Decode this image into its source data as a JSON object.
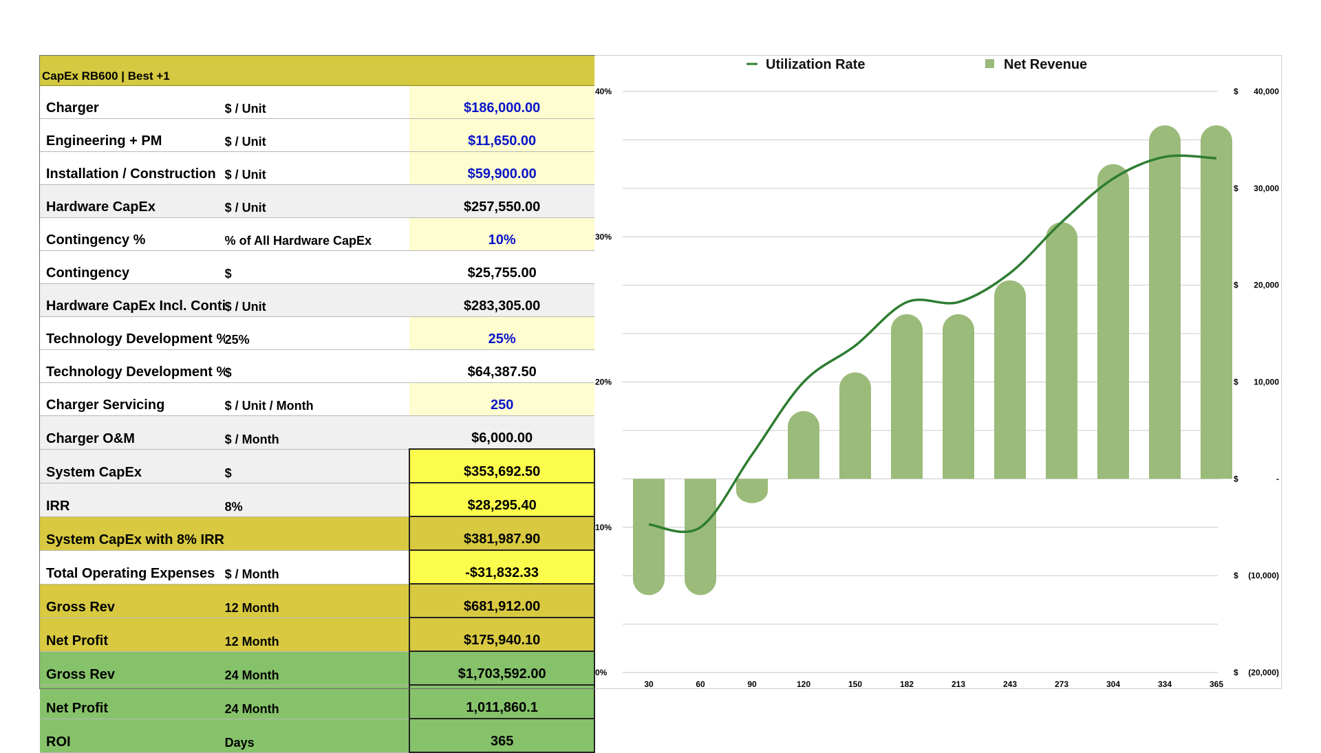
{
  "sheet": {
    "title": "CapEx RB600 | Best +1",
    "rows": [
      {
        "label": "Charger",
        "unit": "$ / Unit",
        "value": "$186,000.00",
        "bg": "white",
        "vbg": "lightyellow",
        "blue": true
      },
      {
        "label": "Engineering + PM",
        "unit": "$ / Unit",
        "value": "$11,650.00",
        "bg": "white",
        "vbg": "lightyellow",
        "blue": true
      },
      {
        "label": "Installation / Construction",
        "unit": "$ / Unit",
        "value": "$59,900.00",
        "bg": "white",
        "vbg": "lightyellow",
        "blue": true
      },
      {
        "label": "Hardware CapEx",
        "unit": "$ / Unit",
        "value": "$257,550.00",
        "bg": "gray",
        "vbg": "gray",
        "blue": false
      },
      {
        "label": "Contingency %",
        "unit": "% of All Hardware CapEx",
        "value": "10%",
        "bg": "white",
        "vbg": "lightyellow",
        "blue": true
      },
      {
        "label": "Contingency",
        "unit": "$",
        "value": "$25,755.00",
        "bg": "white",
        "vbg": "white",
        "blue": false
      },
      {
        "label": "Hardware CapEx Incl. Contingency",
        "unit": "$ / Unit",
        "value": "$283,305.00",
        "bg": "gray",
        "vbg": "gray",
        "blue": false
      },
      {
        "label": "Technology Development  %",
        "unit": "25%",
        "value": "25%",
        "bg": "white",
        "vbg": "lightyellow",
        "blue": true
      },
      {
        "label": "Technology Development  %",
        "unit": "$",
        "value": "$64,387.50",
        "bg": "white",
        "vbg": "white",
        "blue": false
      },
      {
        "label": "Charger Servicing",
        "unit": "$ / Unit / Month",
        "value": "250",
        "bg": "white",
        "vbg": "lightyellow",
        "blue": true
      },
      {
        "label": "Charger O&M",
        "unit": "$ / Month",
        "value": "$6,000.00",
        "bg": "gray",
        "vbg": "gray",
        "blue": false
      },
      {
        "label": "System CapEx",
        "unit": "$",
        "value": "$353,692.50",
        "bg": "gray",
        "vbg": "yellow",
        "blue": false,
        "boxed": true
      },
      {
        "label": "IRR",
        "unit": "8%",
        "value": "$28,295.40",
        "bg": "gray",
        "vbg": "yellow",
        "blue": false,
        "boxed": true
      },
      {
        "label": "System CapEx with 8% IRR",
        "unit": "",
        "value": "$381,987.90",
        "bg": "olive",
        "vbg": "olive",
        "blue": false,
        "boxed": true
      },
      {
        "label": "Total Operating Expenses",
        "unit": "$ / Month",
        "value": "-$31,832.33",
        "bg": "white",
        "vbg": "yellow",
        "blue": false,
        "boxed": true
      },
      {
        "label": "Gross Rev",
        "unit": "12 Month",
        "value": "$681,912.00",
        "bg": "olive",
        "vbg": "olive",
        "blue": false,
        "boxed": true
      },
      {
        "label": "Net Profit",
        "unit": "12 Month",
        "value": "$175,940.10",
        "bg": "olive",
        "vbg": "olive",
        "blue": false,
        "boxed": true
      },
      {
        "label": "Gross Rev",
        "unit": "24 Month",
        "value": "$1,703,592.00",
        "bg": "green",
        "vbg": "green",
        "blue": false,
        "boxed": true
      },
      {
        "label": "Net Profit",
        "unit": "24 Month",
        "value": "1,011,860.1",
        "bg": "green",
        "vbg": "green",
        "blue": false,
        "boxed": true
      },
      {
        "label": "ROI",
        "unit": "Days",
        "value": "365",
        "bg": "green",
        "vbg": "green",
        "blue": false,
        "boxed": true
      }
    ]
  },
  "chart_data": {
    "type": "bar+line",
    "categories": [
      "30",
      "60",
      "90",
      "120",
      "150",
      "182",
      "213",
      "243",
      "273",
      "304",
      "334",
      "365"
    ],
    "series": [
      {
        "name": "Net Revenue",
        "type": "bar",
        "axis": "right",
        "values": [
          -12000,
          -12000,
          -2500,
          7000,
          11000,
          17000,
          17000,
          20500,
          26500,
          32500,
          36500,
          36500
        ]
      },
      {
        "name": "Utilization Rate",
        "type": "line",
        "axis": "left",
        "values": [
          10.2,
          10.0,
          15.0,
          20.0,
          22.5,
          25.5,
          25.5,
          27.5,
          31.0,
          34.0,
          35.5,
          35.4
        ]
      }
    ],
    "left_axis": {
      "ticks": [
        "0%",
        "10%",
        "20%",
        "30%",
        "40%"
      ],
      "ylim": [
        0,
        40
      ]
    },
    "right_axis": {
      "ticks": [
        "$  40,000",
        "$  30,000",
        "$  20,000",
        "$  10,000",
        "$   -",
        "$  (10,000)",
        "$  (20,000)"
      ],
      "ylim": [
        -20000,
        40000
      ]
    },
    "legend": "top",
    "grid": true,
    "colors": {
      "bar": "#9bbb7a",
      "line": "#2e7d32"
    }
  }
}
